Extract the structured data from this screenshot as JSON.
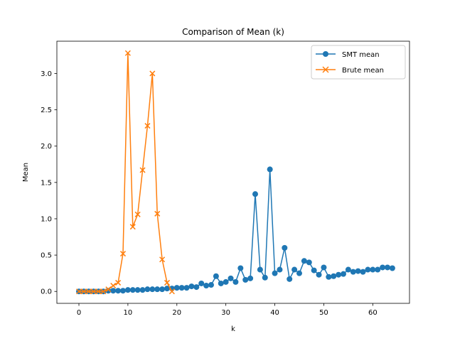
{
  "chart_data": {
    "type": "line",
    "title": "Comparison of Mean (k)",
    "xlabel": "k",
    "ylabel": "Mean",
    "xlim": [
      -4.5,
      67.5
    ],
    "ylim": [
      -0.164,
      3.444
    ],
    "xticks": [
      0,
      10,
      20,
      30,
      40,
      50,
      60
    ],
    "xtick_labels": [
      "0",
      "10",
      "20",
      "30",
      "40",
      "50",
      "60"
    ],
    "yticks": [
      0.0,
      0.5,
      1.0,
      1.5,
      2.0,
      2.5,
      3.0
    ],
    "ytick_labels": [
      "0.0",
      "0.5",
      "1.0",
      "1.5",
      "2.0",
      "2.5",
      "3.0"
    ],
    "grid": false,
    "legend_position": "upper right",
    "series": [
      {
        "name": "SMT mean",
        "color": "#1f77b4",
        "marker": "circle",
        "x": [
          0,
          1,
          2,
          3,
          4,
          5,
          6,
          7,
          8,
          9,
          10,
          11,
          12,
          13,
          14,
          15,
          16,
          17,
          18,
          19,
          20,
          21,
          22,
          23,
          24,
          25,
          26,
          27,
          28,
          29,
          30,
          31,
          32,
          33,
          34,
          35,
          36,
          37,
          38,
          39,
          40,
          41,
          42,
          43,
          44,
          45,
          46,
          47,
          48,
          49,
          50,
          51,
          52,
          53,
          54,
          55,
          56,
          57,
          58,
          59,
          60,
          61,
          62,
          63,
          64
        ],
        "y": [
          0.0,
          0.0,
          0.0,
          0.0,
          0.0,
          0.0,
          0.01,
          0.01,
          0.01,
          0.01,
          0.02,
          0.02,
          0.02,
          0.02,
          0.03,
          0.03,
          0.03,
          0.03,
          0.04,
          0.04,
          0.05,
          0.05,
          0.05,
          0.07,
          0.06,
          0.11,
          0.08,
          0.09,
          0.21,
          0.11,
          0.13,
          0.18,
          0.13,
          0.32,
          0.16,
          0.18,
          1.34,
          0.3,
          0.19,
          1.68,
          0.25,
          0.3,
          0.6,
          0.17,
          0.3,
          0.25,
          0.42,
          0.4,
          0.29,
          0.23,
          0.33,
          0.2,
          0.21,
          0.23,
          0.24,
          0.3,
          0.27,
          0.28,
          0.27,
          0.3,
          0.3,
          0.3,
          0.33,
          0.33,
          0.32
        ]
      },
      {
        "name": "Brute mean",
        "color": "#ff7f0e",
        "marker": "x",
        "x": [
          0,
          1,
          2,
          3,
          4,
          5,
          6,
          7,
          8,
          9,
          10,
          11,
          12,
          13,
          14,
          15,
          16,
          17,
          18,
          19
        ],
        "y": [
          0.0,
          0.0,
          0.0,
          0.0,
          0.0,
          0.0,
          0.03,
          0.08,
          0.12,
          0.52,
          3.28,
          0.89,
          1.06,
          1.67,
          2.28,
          3.0,
          1.07,
          0.44,
          0.12,
          0.0
        ]
      }
    ]
  }
}
